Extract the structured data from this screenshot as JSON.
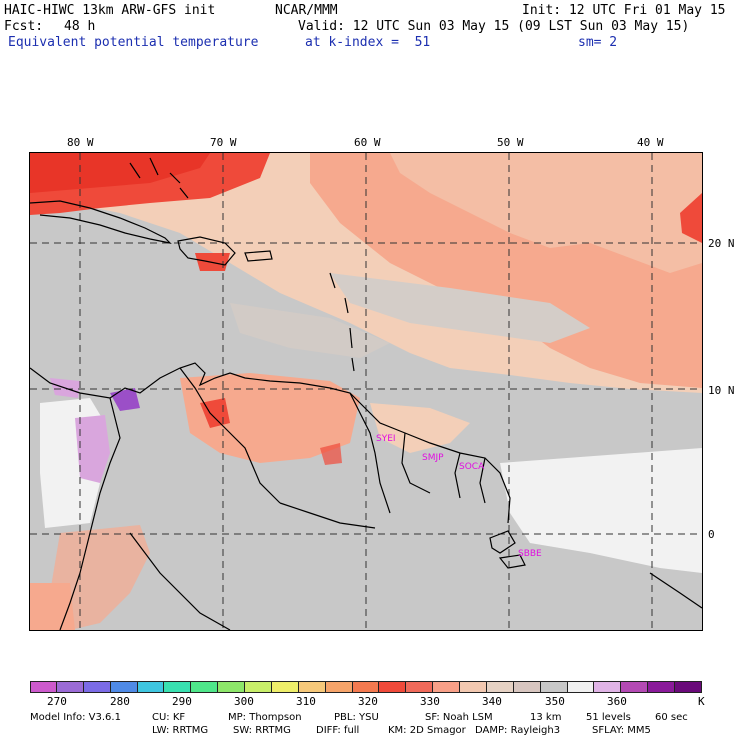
{
  "header": {
    "model": "HAIC-HIWC 13km ARW-GFS init",
    "org": "NCAR/MMM",
    "init": "Init: 12 UTC Fri 01 May 15",
    "fcst_label": "Fcst:",
    "fcst_value": "48 h",
    "valid": "Valid: 12 UTC Sun 03 May 15 (09 LST Sun 03 May 15)",
    "field": "Equivalent potential temperature",
    "level": "at k-index =  51",
    "smooth": "sm= 2"
  },
  "map": {
    "lon_labels": [
      "80 W",
      "70 W",
      "60 W",
      "50 W",
      "40 W"
    ],
    "lat_labels": [
      "20 N",
      "10 N",
      "0"
    ],
    "stations": [
      "SYEI",
      "SMJP",
      "SOCA",
      "SBBE"
    ],
    "colors": {
      "land_gray": "#c8c8c8",
      "light_peach": "#f3cfb8",
      "salmon": "#f6a98e",
      "coral": "#f58064",
      "red": "#ef4a3a",
      "lavender": "#d9a6dd",
      "purple": "#9b4fc7",
      "white": "#f2f2f2",
      "coast": "#000000"
    }
  },
  "colorbar": {
    "colors": [
      "#cc5acc",
      "#9b6bd6",
      "#7b6be6",
      "#4f8ae6",
      "#3fc6e0",
      "#39e0b0",
      "#4fe68a",
      "#8de66a",
      "#c8ee6a",
      "#eeee6a",
      "#f6c87a",
      "#f6a46a",
      "#f47a50",
      "#f04a3a",
      "#f06a5a",
      "#f8a088",
      "#f2c8b0",
      "#e6d2c4",
      "#d8c6c0",
      "#c8c8c8",
      "#f0f0f0",
      "#e0b4e6",
      "#b44ab4",
      "#8a1a9a",
      "#6a0a7a"
    ],
    "ticks": [
      "270",
      "280",
      "290",
      "300",
      "310",
      "320",
      "330",
      "340",
      "350",
      "360",
      "K"
    ]
  },
  "footer": {
    "line1": [
      "Model Info: V3.6.1",
      "CU: KF",
      "MP: Thompson",
      "PBL: YSU",
      "SF: Noah LSM",
      "13 km",
      "51 levels",
      "60 sec"
    ],
    "line2": [
      "LW: RRTMG",
      "SW: RRTMG",
      "DIFF: full",
      "KM: 2D Smagor",
      "DAMP: Rayleigh3",
      "SFLAY: MM5"
    ]
  }
}
